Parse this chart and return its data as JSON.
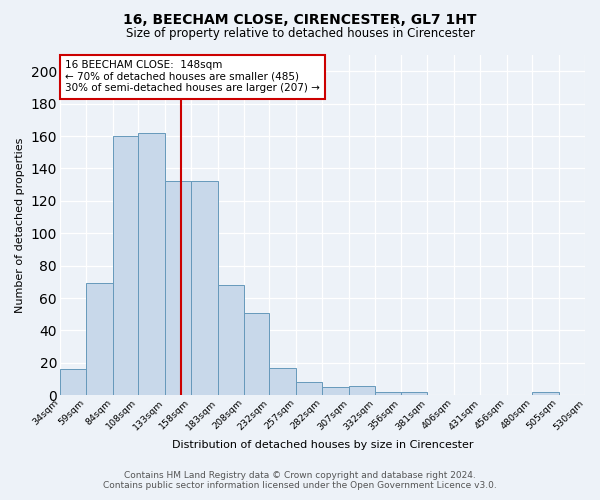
{
  "title": "16, BEECHAM CLOSE, CIRENCESTER, GL7 1HT",
  "subtitle": "Size of property relative to detached houses in Cirencester",
  "xlabel": "Distribution of detached houses by size in Cirencester",
  "ylabel": "Number of detached properties",
  "footer_line1": "Contains HM Land Registry data © Crown copyright and database right 2024.",
  "footer_line2": "Contains public sector information licensed under the Open Government Licence v3.0.",
  "annotation_line1": "16 BEECHAM CLOSE:  148sqm",
  "annotation_line2": "← 70% of detached houses are smaller (485)",
  "annotation_line3": "30% of semi-detached houses are larger (207) →",
  "property_value": 148,
  "bin_edges": [
    34,
    59,
    84,
    108,
    133,
    158,
    183,
    208,
    232,
    257,
    282,
    307,
    332,
    356,
    381,
    406,
    431,
    456,
    480,
    505,
    530
  ],
  "bin_labels": [
    "34sqm",
    "59sqm",
    "84sqm",
    "108sqm",
    "133sqm",
    "158sqm",
    "183sqm",
    "208sqm",
    "232sqm",
    "257sqm",
    "282sqm",
    "307sqm",
    "332sqm",
    "356sqm",
    "381sqm",
    "406sqm",
    "431sqm",
    "456sqm",
    "480sqm",
    "505sqm",
    "530sqm"
  ],
  "counts": [
    16,
    69,
    160,
    162,
    132,
    132,
    68,
    51,
    17,
    8,
    5,
    6,
    2,
    2,
    0,
    0,
    0,
    0,
    2,
    0
  ],
  "bar_color": "#c8d8ea",
  "bar_edge_color": "#6699bb",
  "vline_color": "#cc0000",
  "vline_x": 148,
  "annotation_box_edge": "#cc0000",
  "background_color": "#edf2f8",
  "plot_background": "#edf2f8",
  "ylim": [
    0,
    210
  ],
  "yticks": [
    0,
    20,
    40,
    60,
    80,
    100,
    120,
    140,
    160,
    180,
    200
  ]
}
